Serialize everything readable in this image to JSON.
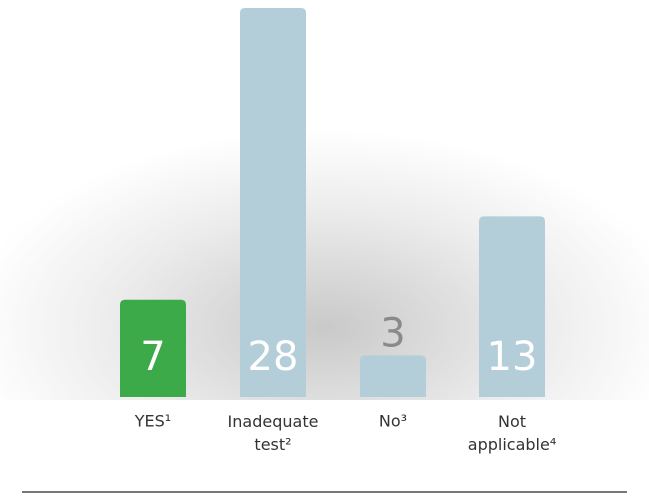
{
  "chart_data": {
    "type": "bar",
    "categories": [
      "YES¹",
      "Inadequate test²",
      "No³",
      "Not applicable⁴"
    ],
    "values": [
      7,
      28,
      3,
      13
    ],
    "colors": [
      "#3daa4a",
      "#b3cdd9",
      "#b3cdd9",
      "#b3cdd9"
    ]
  }
}
